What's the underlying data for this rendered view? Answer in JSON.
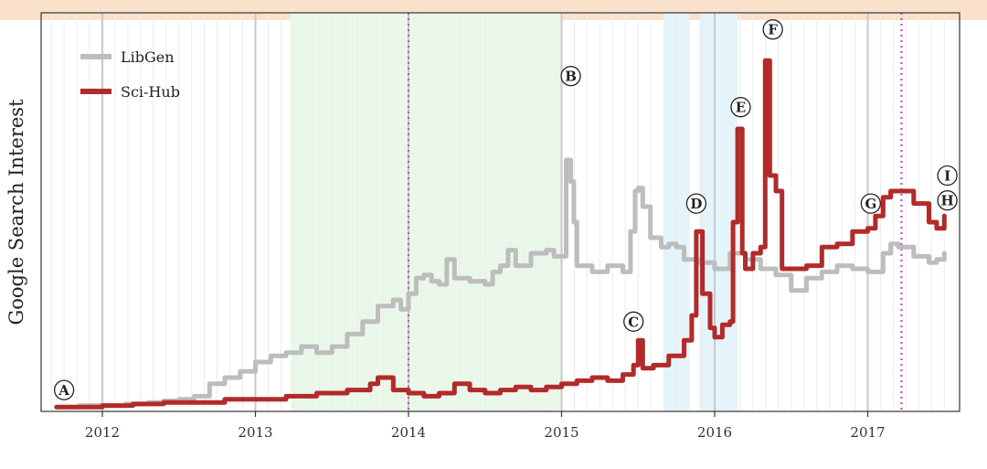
{
  "chart_data": {
    "type": "line",
    "title": "",
    "xlabel": "",
    "ylabel": "Google Search Interest",
    "xlim": [
      2011.6,
      2017.6
    ],
    "ylim": [
      0,
      100
    ],
    "x_ticks": [
      "2012",
      "2013",
      "2014",
      "2015",
      "2016",
      "2017"
    ],
    "grid": "vertical",
    "legend_position": "top-left",
    "series": [
      {
        "name": "LibGen",
        "color": "#bdbdbd",
        "points": [
          [
            2011.7,
            0.5
          ],
          [
            2011.85,
            1
          ],
          [
            2012.0,
            1
          ],
          [
            2012.15,
            1.5
          ],
          [
            2012.3,
            2
          ],
          [
            2012.4,
            2.5
          ],
          [
            2012.5,
            3
          ],
          [
            2012.6,
            4
          ],
          [
            2012.7,
            8
          ],
          [
            2012.8,
            10
          ],
          [
            2012.9,
            12
          ],
          [
            2013.0,
            15
          ],
          [
            2013.1,
            17
          ],
          [
            2013.2,
            18
          ],
          [
            2013.3,
            20
          ],
          [
            2013.4,
            18
          ],
          [
            2013.5,
            20
          ],
          [
            2013.6,
            24
          ],
          [
            2013.7,
            28
          ],
          [
            2013.8,
            33
          ],
          [
            2013.9,
            35
          ],
          [
            2013.95,
            32
          ],
          [
            2014.0,
            37
          ],
          [
            2014.05,
            42
          ],
          [
            2014.1,
            43
          ],
          [
            2014.15,
            41
          ],
          [
            2014.2,
            40
          ],
          [
            2014.25,
            48
          ],
          [
            2014.3,
            42
          ],
          [
            2014.4,
            41
          ],
          [
            2014.5,
            40
          ],
          [
            2014.55,
            44
          ],
          [
            2014.6,
            46
          ],
          [
            2014.65,
            51
          ],
          [
            2014.7,
            46
          ],
          [
            2014.8,
            50
          ],
          [
            2014.9,
            51
          ],
          [
            2014.95,
            49
          ],
          [
            2015.0,
            49
          ],
          [
            2015.03,
            80
          ],
          [
            2015.06,
            73
          ],
          [
            2015.08,
            60
          ],
          [
            2015.1,
            46
          ],
          [
            2015.2,
            44
          ],
          [
            2015.3,
            46
          ],
          [
            2015.4,
            44
          ],
          [
            2015.45,
            57
          ],
          [
            2015.48,
            70
          ],
          [
            2015.5,
            71
          ],
          [
            2015.53,
            65
          ],
          [
            2015.58,
            55
          ],
          [
            2015.65,
            52
          ],
          [
            2015.7,
            53
          ],
          [
            2015.75,
            52
          ],
          [
            2015.8,
            48
          ],
          [
            2015.9,
            47
          ],
          [
            2016.0,
            45
          ],
          [
            2016.1,
            50
          ],
          [
            2016.2,
            48
          ],
          [
            2016.3,
            45
          ],
          [
            2016.4,
            43
          ],
          [
            2016.5,
            38
          ],
          [
            2016.6,
            42
          ],
          [
            2016.7,
            44
          ],
          [
            2016.8,
            46
          ],
          [
            2016.9,
            45
          ],
          [
            2017.0,
            44
          ],
          [
            2017.1,
            50
          ],
          [
            2017.15,
            53
          ],
          [
            2017.2,
            52
          ],
          [
            2017.3,
            49
          ],
          [
            2017.4,
            47
          ],
          [
            2017.45,
            48
          ],
          [
            2017.5,
            50
          ]
        ]
      },
      {
        "name": "Sci-Hub",
        "color": "#b22a2a",
        "points": [
          [
            2011.7,
            0.5
          ],
          [
            2011.85,
            0.5
          ],
          [
            2012.0,
            1
          ],
          [
            2012.2,
            1.5
          ],
          [
            2012.4,
            2
          ],
          [
            2012.6,
            2
          ],
          [
            2012.8,
            3
          ],
          [
            2013.0,
            3
          ],
          [
            2013.2,
            4
          ],
          [
            2013.4,
            5
          ],
          [
            2013.6,
            6
          ],
          [
            2013.75,
            8
          ],
          [
            2013.8,
            10
          ],
          [
            2013.9,
            6
          ],
          [
            2014.0,
            5
          ],
          [
            2014.1,
            4
          ],
          [
            2014.2,
            5
          ],
          [
            2014.3,
            8
          ],
          [
            2014.4,
            6
          ],
          [
            2014.5,
            5
          ],
          [
            2014.6,
            6
          ],
          [
            2014.7,
            7
          ],
          [
            2014.8,
            6
          ],
          [
            2014.9,
            7
          ],
          [
            2015.0,
            8
          ],
          [
            2015.1,
            9
          ],
          [
            2015.2,
            10
          ],
          [
            2015.3,
            9
          ],
          [
            2015.4,
            11
          ],
          [
            2015.47,
            14
          ],
          [
            2015.5,
            22
          ],
          [
            2015.53,
            13
          ],
          [
            2015.6,
            14
          ],
          [
            2015.7,
            17
          ],
          [
            2015.8,
            22
          ],
          [
            2015.85,
            30
          ],
          [
            2015.88,
            57
          ],
          [
            2015.92,
            37
          ],
          [
            2015.97,
            26
          ],
          [
            2016.0,
            23
          ],
          [
            2016.05,
            27
          ],
          [
            2016.1,
            28
          ],
          [
            2016.12,
            60
          ],
          [
            2016.15,
            90
          ],
          [
            2016.18,
            50
          ],
          [
            2016.2,
            45
          ],
          [
            2016.25,
            50
          ],
          [
            2016.3,
            52
          ],
          [
            2016.33,
            112
          ],
          [
            2016.36,
            75
          ],
          [
            2016.4,
            70
          ],
          [
            2016.44,
            45
          ],
          [
            2016.5,
            45
          ],
          [
            2016.6,
            46
          ],
          [
            2016.7,
            52
          ],
          [
            2016.8,
            53
          ],
          [
            2016.9,
            57
          ],
          [
            2017.0,
            58
          ],
          [
            2017.05,
            62
          ],
          [
            2017.1,
            68
          ],
          [
            2017.15,
            70
          ],
          [
            2017.2,
            70
          ],
          [
            2017.3,
            66
          ],
          [
            2017.4,
            60
          ],
          [
            2017.45,
            58
          ],
          [
            2017.5,
            62
          ]
        ]
      }
    ],
    "shaded_regions": [
      {
        "x0": 2013.23,
        "x1": 2015.0,
        "color": "#eaf8ea"
      },
      {
        "x0": 2015.67,
        "x1": 2015.83,
        "color": "#e3f4fb"
      },
      {
        "x0": 2015.9,
        "x1": 2016.15,
        "color": "#e3f4fb"
      }
    ],
    "vertical_lines": [
      {
        "x": 2014.0,
        "color": "#e040e0"
      },
      {
        "x": 2017.22,
        "color": "#e040e0"
      }
    ],
    "annotations": [
      {
        "label": "A",
        "x": 2011.75,
        "y": 6
      },
      {
        "label": "B",
        "x": 2015.06,
        "y": 107
      },
      {
        "label": "C",
        "x": 2015.47,
        "y": 28
      },
      {
        "label": "D",
        "x": 2015.88,
        "y": 66
      },
      {
        "label": "E",
        "x": 2016.17,
        "y": 97
      },
      {
        "label": "F",
        "x": 2016.38,
        "y": 122
      },
      {
        "label": "G",
        "x": 2017.02,
        "y": 66
      },
      {
        "label": "H",
        "x": 2017.52,
        "y": 67
      },
      {
        "label": "I",
        "x": 2017.52,
        "y": 75
      }
    ]
  }
}
